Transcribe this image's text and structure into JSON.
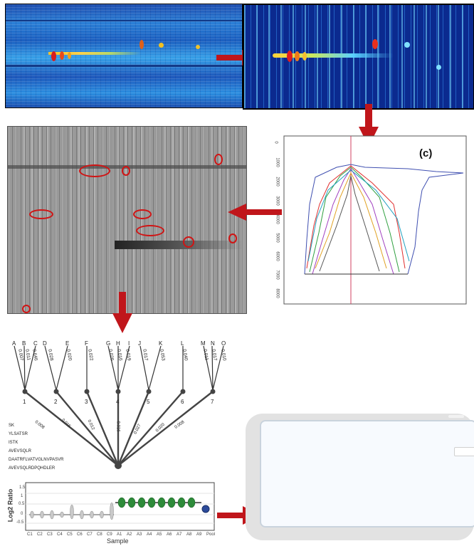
{
  "panel_c_label": "(c)",
  "panel_c_yticks": [
    "0",
    "1000",
    "2000",
    "3000",
    "4000",
    "5000",
    "6000",
    "7000",
    "8000"
  ],
  "tree": {
    "leaves": [
      {
        "letter": "A",
        "value": "0.007"
      },
      {
        "letter": "B",
        "value": "0.011"
      },
      {
        "letter": "C",
        "value": "0.646"
      },
      {
        "letter": "D",
        "value": "0.028"
      },
      {
        "letter": "E",
        "value": "0.020"
      },
      {
        "letter": "F",
        "value": "0.022"
      },
      {
        "letter": "G",
        "value": "0.026"
      },
      {
        "letter": "H",
        "value": "0.016"
      },
      {
        "letter": "I",
        "value": "0.019"
      },
      {
        "letter": "J",
        "value": "0.017"
      },
      {
        "letter": "K",
        "value": "0.053"
      },
      {
        "letter": "L",
        "value": "0.040"
      },
      {
        "letter": "M",
        "value": "0.011"
      },
      {
        "letter": "N",
        "value": "0.017"
      },
      {
        "letter": "O",
        "value": "0.010"
      }
    ],
    "nodes": [
      "1",
      "2",
      "3",
      "4",
      "5",
      "6",
      "7"
    ],
    "root_branch_values": [
      "0.008",
      "0.015",
      "0.012",
      "0.016",
      "0.027",
      "0.020",
      "0.008"
    ],
    "peptides": [
      "SK",
      "YLSATSR",
      "ISTK",
      "AVEVSQLR",
      "DAATRFLVATVGLNVPASVR",
      "AVEVSQLRDPQHDLER"
    ]
  },
  "violin": {
    "ylabel": "Log2 Ratio",
    "xlabel": "Sample",
    "yticks": [
      "1.5",
      "1",
      "0.5",
      "0",
      "-0.5"
    ],
    "categories": [
      "C1",
      "C2",
      "C3",
      "C4",
      "C5",
      "C6",
      "C7",
      "C8",
      "C9",
      "A1",
      "A2",
      "A3",
      "A4",
      "A5",
      "A6",
      "A7",
      "A8",
      "A9",
      "Pool"
    ]
  },
  "colors": {
    "arrow": "#c0161b",
    "heat_bg": "#1e5cc0",
    "zoom_bg": "#0b2a8f",
    "green": "#2e8b3a",
    "blue": "#2c4a9a"
  }
}
